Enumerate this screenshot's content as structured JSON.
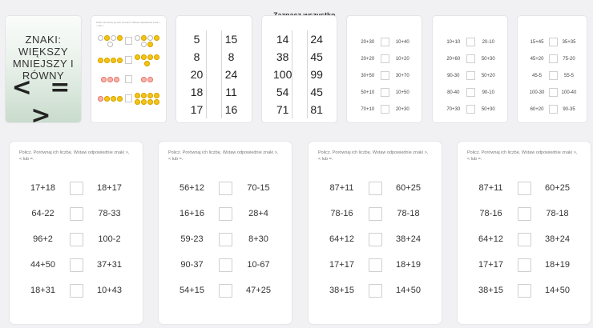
{
  "tooltip": "Zaznacz wszystko",
  "cover": {
    "title_line1": "ZNAKI: WIĘKSZY",
    "title_line2": "MNIEJSZY I RÓWNY",
    "symbols": "< = >"
  },
  "emoji_thumb": {
    "instruction": "Policz elementy po obu stronach. Wstaw odpowiedni znak >, < lub =."
  },
  "number_thumbs": [
    {
      "rows": [
        [
          "5",
          "15"
        ],
        [
          "8",
          "8"
        ],
        [
          "20",
          "24"
        ],
        [
          "18",
          "11"
        ],
        [
          "17",
          "16"
        ]
      ]
    },
    {
      "rows": [
        [
          "14",
          "24"
        ],
        [
          "38",
          "45"
        ],
        [
          "100",
          "99"
        ],
        [
          "54",
          "45"
        ],
        [
          "71",
          "81"
        ]
      ]
    }
  ],
  "small_thumbs": [
    {
      "rows": [
        [
          "20+30",
          "10+40"
        ],
        [
          "20+20",
          "10+20"
        ],
        [
          "30+50",
          "30+70"
        ],
        [
          "50+10",
          "10+50"
        ],
        [
          "70+10",
          "20+30"
        ]
      ]
    },
    {
      "rows": [
        [
          "10+10",
          "20-10"
        ],
        [
          "20+60",
          "50+30"
        ],
        [
          "90-30",
          "50+20"
        ],
        [
          "80-40",
          "90-10"
        ],
        [
          "70+30",
          "50+30"
        ]
      ]
    },
    {
      "rows": [
        [
          "15+45",
          "35+35"
        ],
        [
          "45+20",
          "75-20"
        ],
        [
          "45-5",
          "55-5"
        ],
        [
          "100-30",
          "100-40"
        ],
        [
          "60+20",
          "90-35"
        ]
      ]
    }
  ],
  "cards": [
    {
      "instruction": "Policz. Porównaj ich liczbę. Wstaw odpowiednie znaki >, < lub =.",
      "rows": [
        [
          "17+18",
          "18+17"
        ],
        [
          "64-22",
          "78-33"
        ],
        [
          "96+2",
          "100-2"
        ],
        [
          "44+50",
          "37+31"
        ],
        [
          "18+31",
          "10+43"
        ]
      ]
    },
    {
      "instruction": "",
      "rows": [
        [
          "56+12",
          "70-15"
        ],
        [
          "16+16",
          "28+4"
        ],
        [
          "59-23",
          "8+30"
        ],
        [
          "90-37",
          "10-67"
        ],
        [
          "54+15",
          "47+25"
        ]
      ]
    },
    {
      "instruction": "Policz. Porównaj ich liczbę. Wstaw odpowiednie znaki >, < lub =.",
      "rows": [
        [
          "87+11",
          "60+25"
        ],
        [
          "78-16",
          "78-18"
        ],
        [
          "64+12",
          "38+24"
        ],
        [
          "17+17",
          "18+19"
        ],
        [
          "38+15",
          "14+50"
        ]
      ]
    },
    {
      "instruction": "Policz. Porównaj ich liczbę. Wstaw odpowiednie znaki >, < lub =.",
      "rows": [
        [
          "87+11",
          "60+25"
        ],
        [
          "78-16",
          "78-18"
        ],
        [
          "64+12",
          "38+24"
        ],
        [
          "17+17",
          "18+19"
        ],
        [
          "38+15",
          "14+50"
        ]
      ]
    }
  ]
}
